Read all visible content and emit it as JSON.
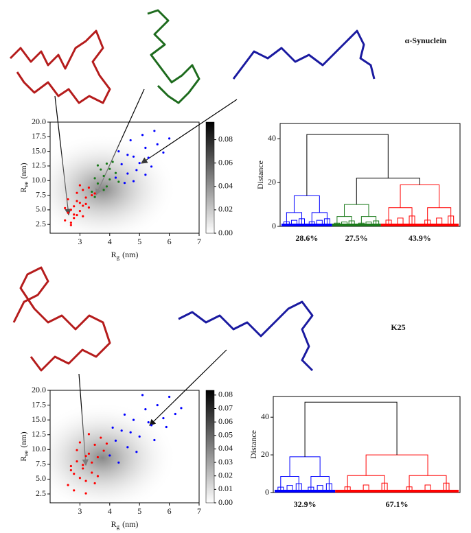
{
  "chart_data": [
    {
      "type": "scatter",
      "label": "α-Synuclein",
      "xlabel": [
        "R",
        "g",
        "(nm)"
      ],
      "ylabel": [
        "R",
        "ee",
        "(nm)"
      ],
      "xlim": [
        2,
        7
      ],
      "xticks": [
        3,
        4,
        5,
        6,
        7
      ],
      "ylim": [
        1,
        20
      ],
      "yticks": [
        2.5,
        {
          "value": 5,
          "label": "5.0"
        },
        7.5,
        {
          "value": 10,
          "label": "10.0"
        },
        12.5,
        {
          "value": 15,
          "label": "15.0"
        },
        17.5,
        {
          "value": 20,
          "label": "20.0"
        }
      ],
      "colorbar": {
        "ylim": [
          0,
          0.095
        ],
        "yticks": [
          {
            "value": 0,
            "label": "0.00"
          },
          {
            "value": 0.02,
            "label": "0.02"
          },
          {
            "value": 0.04,
            "label": "0.04"
          },
          {
            "value": 0.06,
            "label": "0.06"
          },
          {
            "value": 0.08,
            "label": "0.08"
          }
        ]
      },
      "series": [
        {
          "color": "#ff0000",
          "x": [
            2.5,
            2.6,
            2.7,
            2.8,
            2.9,
            3.0,
            3.1,
            3.2,
            3.3,
            2.6,
            2.7,
            2.8,
            2.9,
            3.0,
            3.1,
            3.2,
            3.4,
            2.5,
            2.7,
            2.9,
            3.0,
            3.3,
            3.5,
            2.8,
            3.1
          ],
          "values": [
            3.2,
            4.5,
            2.8,
            5.6,
            4.1,
            6.2,
            3.9,
            7.1,
            5.4,
            6.8,
            5.0,
            3.6,
            7.9,
            4.8,
            8.4,
            6.0,
            7.5,
            5.3,
            2.4,
            6.5,
            9.2,
            8.8,
            7.8,
            4.2,
            5.7
          ]
        },
        {
          "color": "#1a7a1a",
          "x": [
            3.4,
            3.6,
            3.8,
            4.0,
            4.2,
            3.5,
            3.7,
            3.9,
            4.1,
            3.6,
            3.8,
            4.0,
            3.5,
            3.9,
            4.3
          ],
          "values": [
            8.1,
            9.5,
            10.8,
            12.0,
            11.3,
            7.2,
            11.9,
            9.0,
            13.2,
            12.6,
            8.4,
            10.2,
            10.4,
            12.9,
            9.8
          ]
        },
        {
          "color": "#0000ff",
          "x": [
            4.2,
            4.4,
            4.6,
            4.8,
            5.0,
            5.2,
            5.4,
            5.6,
            5.8,
            4.5,
            4.7,
            4.9,
            5.1,
            5.3,
            4.3,
            4.6,
            5.5,
            6.0,
            4.8,
            5.2
          ],
          "values": [
            10.5,
            12.8,
            11.2,
            14.1,
            13.0,
            15.6,
            12.4,
            16.2,
            14.8,
            9.6,
            16.9,
            11.8,
            17.8,
            13.9,
            15.0,
            14.4,
            18.5,
            17.2,
            9.9,
            11.0
          ]
        }
      ]
    },
    {
      "type": "dendrogram",
      "ylabel": "Distance",
      "ylim": [
        0,
        47
      ],
      "yticks": [
        0,
        20,
        40
      ],
      "values": [
        28.6,
        27.5,
        43.9
      ],
      "value_labels": [
        "28.6%",
        "27.5%",
        "43.9%"
      ],
      "colors": [
        "#0000ff",
        "#1a7a1a",
        "#ff0000"
      ],
      "cluster_heights": [
        14,
        10,
        19
      ],
      "merges": [
        22,
        42
      ]
    },
    {
      "type": "scatter",
      "label": "K25",
      "xlabel": [
        "R",
        "g",
        "(nm)"
      ],
      "ylabel": [
        "R",
        "ee",
        "(nm)"
      ],
      "xlim": [
        2,
        7
      ],
      "xticks": [
        3,
        4,
        5,
        6,
        7
      ],
      "ylim": [
        1,
        20
      ],
      "yticks": [
        2.5,
        {
          "value": 5,
          "label": "5.0"
        },
        7.5,
        {
          "value": 10,
          "label": "10.0"
        },
        12.5,
        {
          "value": 15,
          "label": "15.0"
        },
        17.5,
        {
          "value": 20,
          "label": "20.0"
        }
      ],
      "colorbar": {
        "ylim": [
          0,
          0.0835
        ],
        "yticks": [
          {
            "value": 0,
            "label": "0.00"
          },
          {
            "value": 0.01,
            "label": "0.01"
          },
          {
            "value": 0.02,
            "label": "0.02"
          },
          {
            "value": 0.03,
            "label": "0.03"
          },
          {
            "value": 0.04,
            "label": "0.04"
          },
          {
            "value": 0.05,
            "label": "0.05"
          },
          {
            "value": 0.06,
            "label": "0.06"
          },
          {
            "value": 0.07,
            "label": "0.07"
          },
          {
            "value": 0.08,
            "label": "0.08"
          }
        ]
      },
      "series": [
        {
          "color": "#ff0000",
          "x": [
            2.6,
            2.7,
            2.8,
            2.9,
            3.0,
            3.1,
            3.2,
            3.3,
            3.4,
            3.5,
            3.6,
            3.7,
            3.8,
            2.8,
            3.0,
            3.2,
            3.4,
            3.6,
            2.9,
            3.1,
            3.3,
            3.5,
            3.9,
            2.7,
            3.2
          ],
          "values": [
            4.0,
            6.5,
            3.1,
            8.0,
            5.2,
            7.4,
            2.6,
            9.3,
            6.1,
            10.8,
            8.7,
            12.0,
            9.8,
            5.9,
            11.2,
            4.7,
            7.8,
            5.5,
            9.9,
            6.8,
            12.6,
            4.3,
            11.0,
            7.2,
            8.9
          ]
        },
        {
          "color": "#0000ff",
          "x": [
            4.0,
            4.2,
            4.4,
            4.6,
            4.8,
            5.0,
            5.2,
            5.4,
            5.6,
            5.8,
            6.0,
            6.2,
            4.3,
            4.7,
            5.1,
            5.5,
            5.9,
            4.5,
            4.9,
            5.3,
            6.4,
            4.1
          ],
          "values": [
            9.0,
            11.5,
            13.2,
            10.4,
            15.0,
            12.2,
            16.8,
            14.1,
            17.5,
            15.3,
            18.9,
            16.0,
            7.8,
            12.9,
            19.2,
            11.6,
            13.8,
            15.9,
            9.6,
            14.6,
            17.0,
            13.7
          ]
        }
      ]
    },
    {
      "type": "dendrogram",
      "ylabel": "Distance",
      "ylim": [
        0,
        51
      ],
      "yticks": [
        0,
        20,
        40
      ],
      "values": [
        32.9,
        67.1
      ],
      "value_labels": [
        "32.9%",
        "67.1%"
      ],
      "colors": [
        "#0000ff",
        "#ff0000"
      ],
      "cluster_heights": [
        19,
        20
      ],
      "merges": [
        48
      ]
    }
  ]
}
